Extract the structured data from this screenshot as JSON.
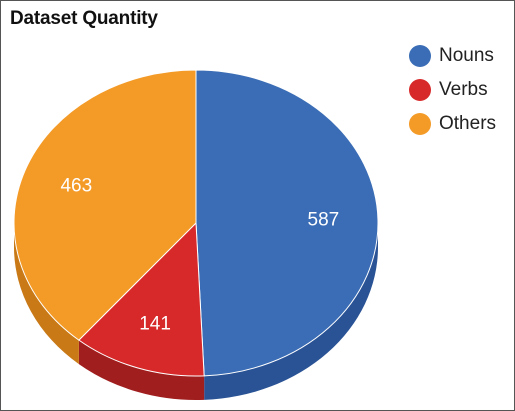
{
  "chart_data": {
    "type": "pie",
    "title": "Dataset Quantity",
    "legend_position": "top-right",
    "three_d": true,
    "slices": [
      {
        "label": "Nouns",
        "value": 587,
        "color": "#3a6db5",
        "shade": "#2a5396"
      },
      {
        "label": "Verbs",
        "value": 141,
        "color": "#d8292a",
        "shade": "#a11e1e"
      },
      {
        "label": "Others",
        "value": 463,
        "color": "#f39a27",
        "shade": "#c97a17"
      }
    ]
  }
}
